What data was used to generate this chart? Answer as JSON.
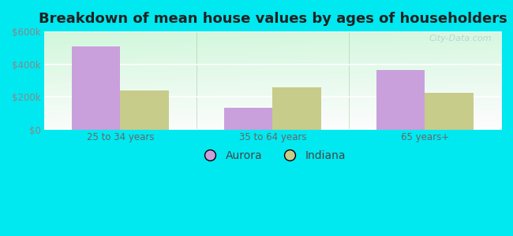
{
  "title": "Breakdown of mean house values by ages of householders",
  "categories": [
    "25 to 34 years",
    "35 to 64 years",
    "65 years+"
  ],
  "aurora_values": [
    510000,
    135000,
    365000
  ],
  "indiana_values": [
    240000,
    260000,
    225000
  ],
  "aurora_color": "#c9a0dc",
  "indiana_color": "#c8cc8a",
  "ylim": [
    0,
    600000
  ],
  "yticks": [
    0,
    200000,
    400000,
    600000
  ],
  "ytick_labels": [
    "$0",
    "$200k",
    "$400k",
    "$600k"
  ],
  "bar_width": 0.32,
  "background_outer": "#00e8f0",
  "legend_aurora": "Aurora",
  "legend_indiana": "Indiana",
  "watermark": "City-Data.com",
  "grid_color": "#ddeedc",
  "title_fontsize": 13
}
